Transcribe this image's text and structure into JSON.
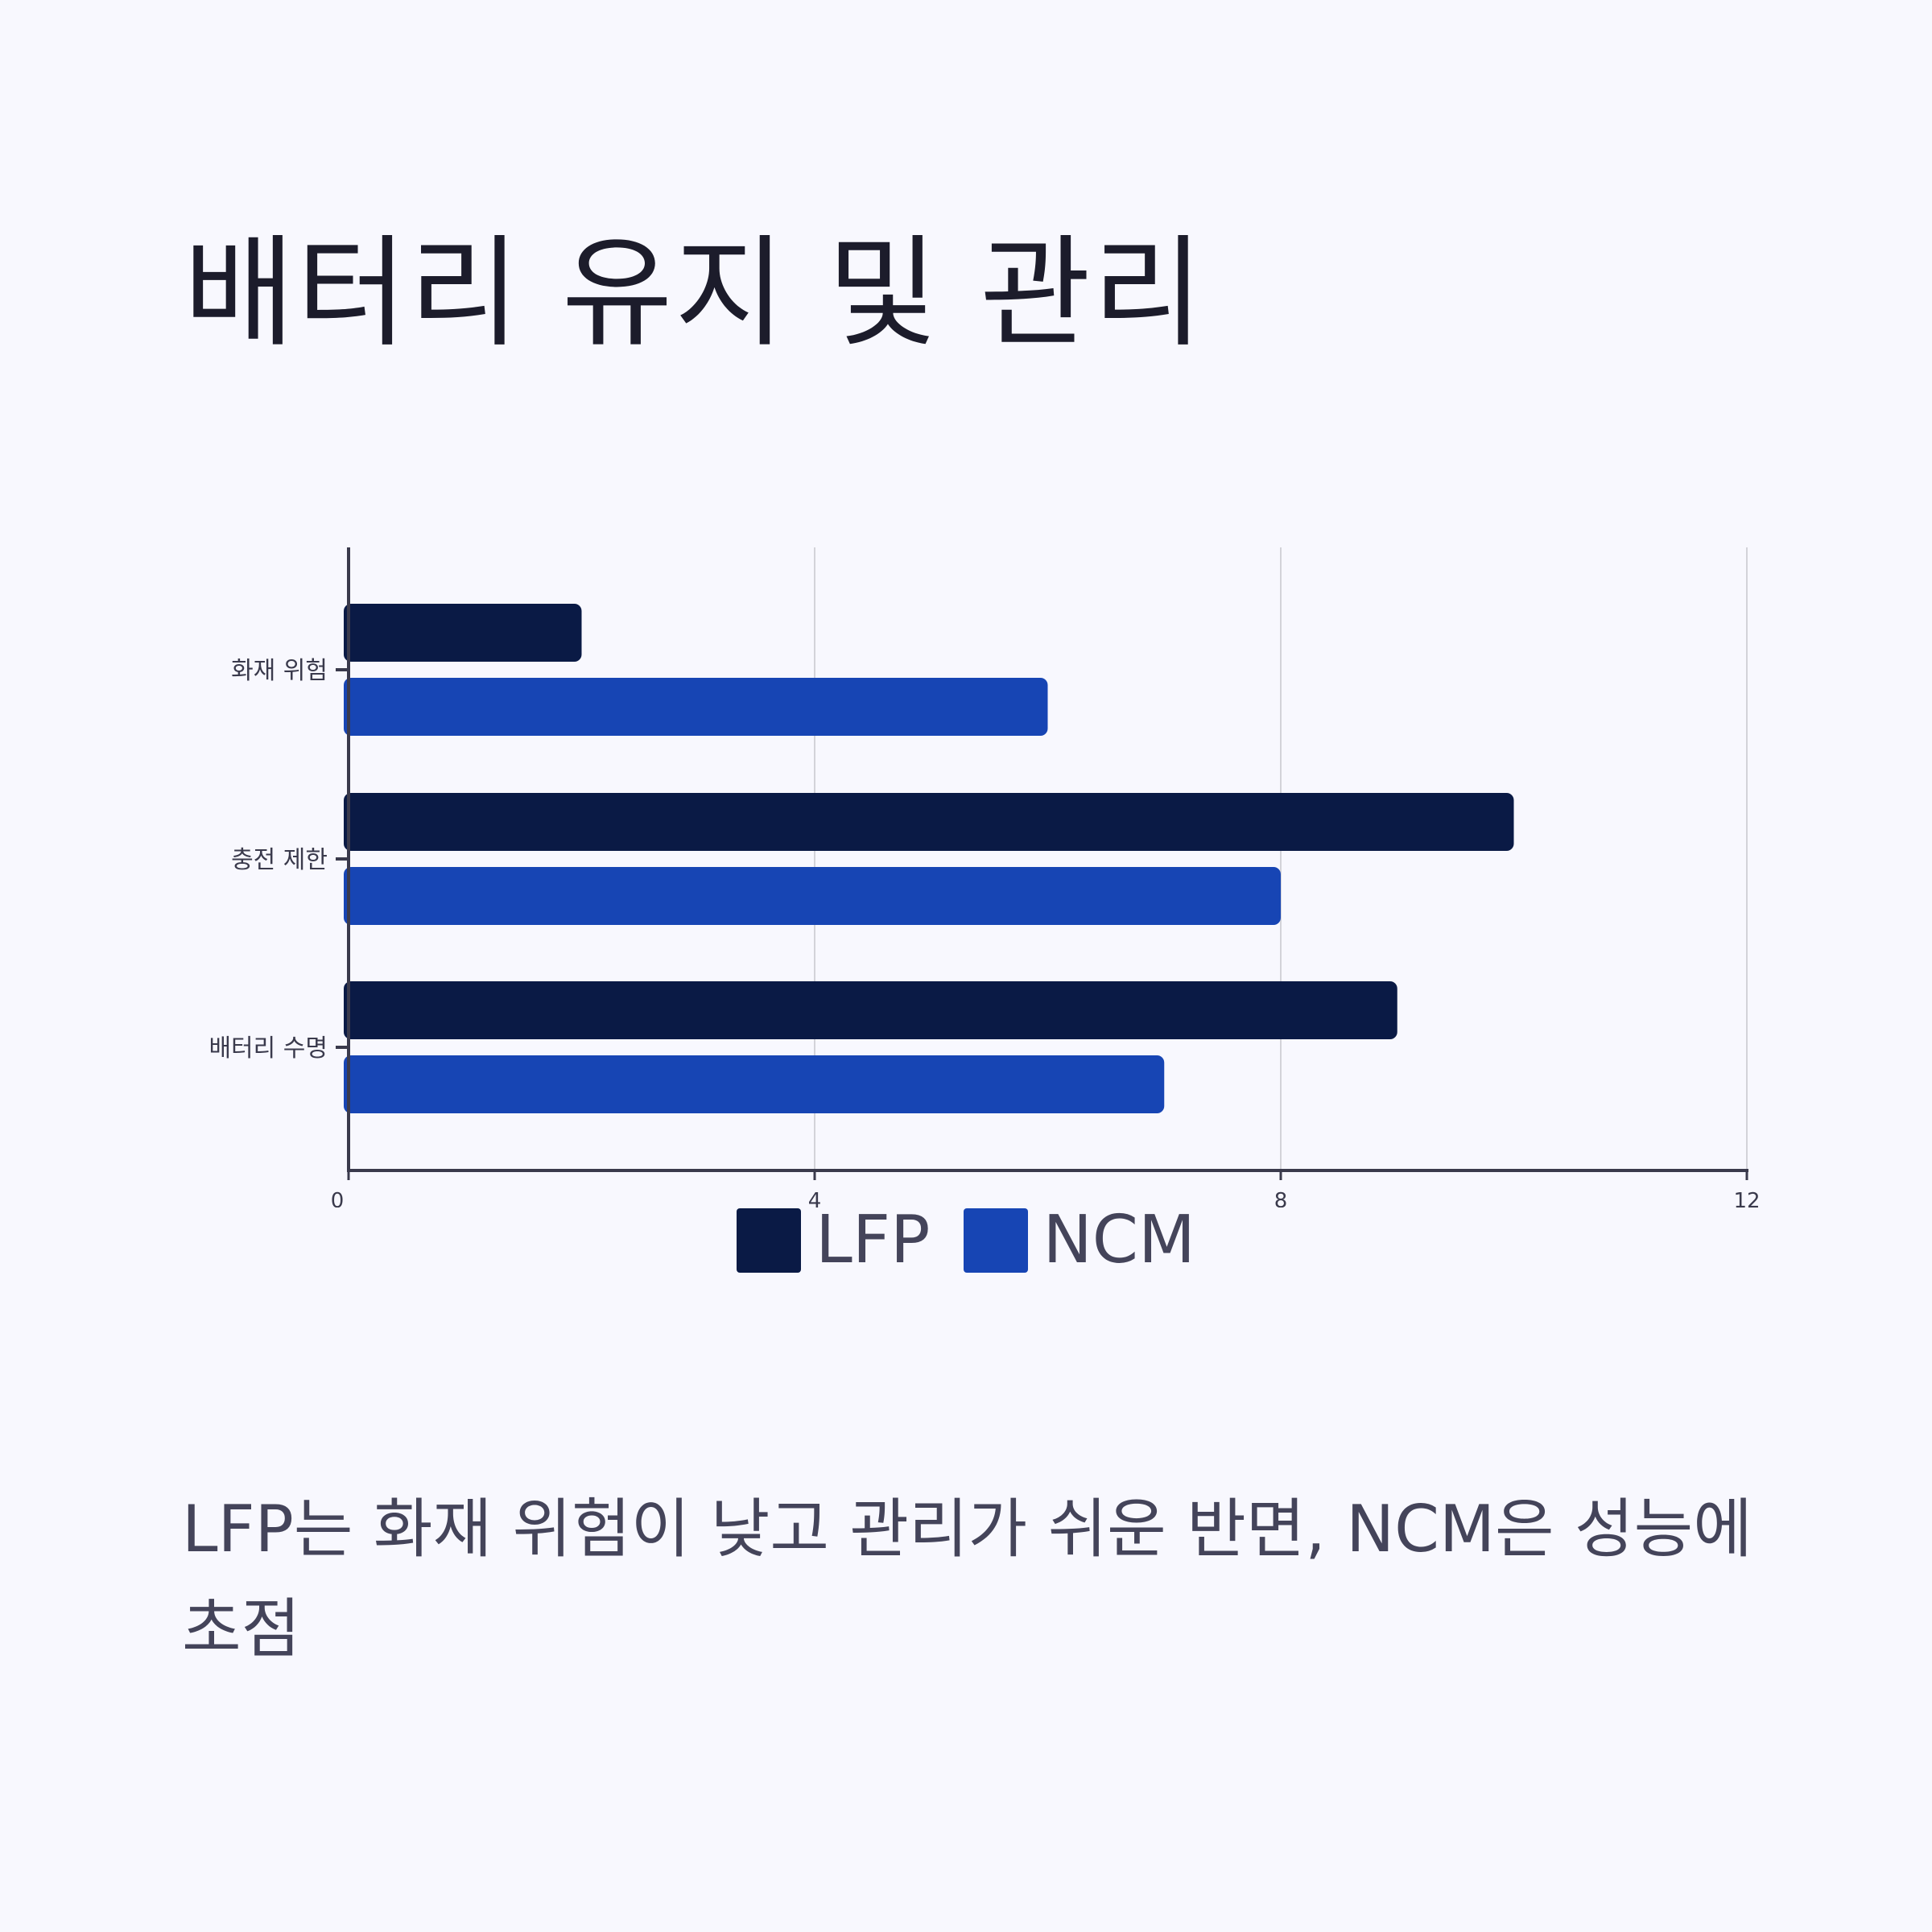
{
  "title": "배터리 유지 및 관리",
  "caption": "LFP는 화재 위험이 낮고 관리가 쉬운 반면, NCM은 성능에 초점",
  "colors": {
    "background": "#f8f8fe",
    "lfp": "#0a1a45",
    "ncm": "#1745b4",
    "axis": "#3a3a4c",
    "grid": "#d3d3d9"
  },
  "chart_data": {
    "type": "bar",
    "orientation": "horizontal",
    "categories": [
      "화재 위험",
      "충전 제한",
      "배터리 수명"
    ],
    "series": [
      {
        "name": "LFP",
        "values": [
          2,
          10,
          9
        ]
      },
      {
        "name": "NCM",
        "values": [
          6,
          8,
          7
        ]
      }
    ],
    "xlim": [
      0,
      12
    ],
    "xticks": [
      "0",
      "4",
      "8",
      "12"
    ],
    "xlabel": "",
    "ylabel": "",
    "grid": "vertical",
    "legend": "bottom-center"
  }
}
